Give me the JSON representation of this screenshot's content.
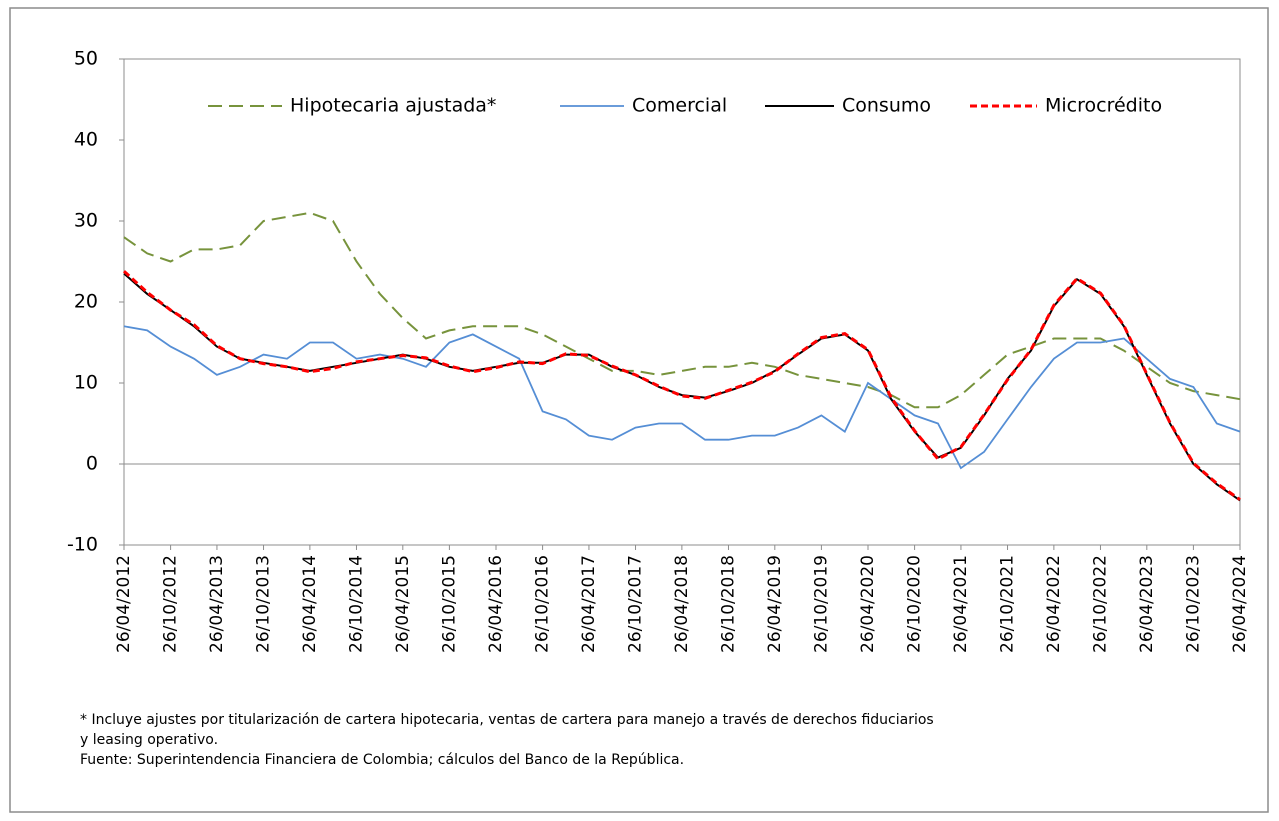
{
  "chart_data": {
    "type": "line",
    "x": [
      "26/04/2012",
      "26/07/2012",
      "26/10/2012",
      "26/01/2013",
      "26/04/2013",
      "26/07/2013",
      "26/10/2013",
      "26/01/2014",
      "26/04/2014",
      "26/07/2014",
      "26/10/2014",
      "26/01/2015",
      "26/04/2015",
      "26/07/2015",
      "26/10/2015",
      "26/01/2016",
      "26/04/2016",
      "26/07/2016",
      "26/10/2016",
      "26/01/2017",
      "26/04/2017",
      "26/07/2017",
      "26/10/2017",
      "26/01/2018",
      "26/04/2018",
      "26/07/2018",
      "26/10/2018",
      "26/01/2019",
      "26/04/2019",
      "26/07/2019",
      "26/10/2019",
      "26/01/2020",
      "26/04/2020",
      "26/07/2020",
      "26/10/2020",
      "26/01/2021",
      "26/04/2021",
      "26/07/2021",
      "26/10/2021",
      "26/01/2022",
      "26/04/2022",
      "26/07/2022",
      "26/10/2022",
      "26/01/2023",
      "26/04/2023",
      "26/07/2023",
      "26/10/2023",
      "26/01/2024",
      "26/04/2024"
    ],
    "xticks": [
      "26/04/2012",
      "26/10/2012",
      "26/04/2013",
      "26/10/2013",
      "26/04/2014",
      "26/10/2014",
      "26/04/2015",
      "26/10/2015",
      "26/04/2016",
      "26/10/2016",
      "26/04/2017",
      "26/10/2017",
      "26/04/2018",
      "26/10/2018",
      "26/04/2019",
      "26/10/2019",
      "26/04/2020",
      "26/10/2020",
      "26/04/2021",
      "26/10/2021",
      "26/04/2022",
      "26/10/2022",
      "26/04/2023",
      "26/10/2023",
      "26/04/2024"
    ],
    "ylim": [
      -10,
      50
    ],
    "yticks": [
      -10,
      0,
      10,
      20,
      30,
      40,
      50
    ],
    "legend": "top",
    "series": [
      {
        "name": "Hipotecaria ajustada*",
        "color": "#77933c",
        "dash": "dashed",
        "values": [
          28,
          26,
          25,
          26.5,
          26.5,
          27,
          30,
          30.5,
          31,
          30,
          25,
          21,
          18,
          15.5,
          16.5,
          17,
          17,
          17,
          16,
          14.5,
          13,
          11.5,
          11.5,
          11,
          11.5,
          12,
          12,
          12.5,
          12,
          11,
          10.5,
          10,
          9.5,
          8.5,
          7,
          7,
          8.5,
          11,
          13.5,
          14.5,
          15.5,
          15.5,
          15.5,
          14,
          12,
          10,
          9,
          8.5,
          8
        ]
      },
      {
        "name": "Comercial",
        "color": "#558ed5",
        "dash": "solid",
        "values": [
          17,
          16.5,
          14.5,
          13,
          11,
          12,
          13.5,
          13,
          15,
          15,
          13,
          13.5,
          13,
          12,
          15,
          16,
          14.5,
          13,
          6.5,
          5.5,
          3.5,
          3,
          4.5,
          5,
          5,
          3,
          3,
          3.5,
          3.5,
          4.5,
          6,
          4,
          10,
          8,
          6,
          5,
          -0.5,
          1.5,
          5.5,
          9.5,
          13,
          15,
          15,
          15.5,
          13,
          10.5,
          9.5,
          5,
          4
        ]
      },
      {
        "name": "Consumo",
        "color": "#000000",
        "dash": "solid",
        "values": [
          23.5,
          21,
          19,
          17,
          14.5,
          13,
          12.5,
          12,
          11.5,
          12,
          12.5,
          13,
          13.5,
          13,
          12,
          11.5,
          12,
          12.5,
          12.5,
          13.5,
          13.5,
          12,
          11,
          9.5,
          8.5,
          8.2,
          9,
          10,
          11.5,
          13.5,
          15.5,
          16,
          14,
          8,
          4,
          0.8,
          2,
          6,
          10.5,
          14,
          19.5,
          22.8,
          21,
          17,
          11,
          5,
          0,
          -2.5,
          -4.5
        ]
      },
      {
        "name": "Microcrédito",
        "color": "#ff0000",
        "dash": "dashed",
        "values": [
          23.8,
          21.2,
          19,
          17.2,
          14.6,
          13,
          12.4,
          12,
          11.4,
          11.8,
          12.6,
          13,
          13.4,
          13.1,
          12.1,
          11.4,
          11.9,
          12.6,
          12.4,
          13.6,
          13.4,
          12.1,
          11,
          9.6,
          8.4,
          8.1,
          9.1,
          10.1,
          11.4,
          13.6,
          15.6,
          16.1,
          14.1,
          8.2,
          4.1,
          0.6,
          2.1,
          6.1,
          10.4,
          14.1,
          19.6,
          22.9,
          21.1,
          17.1,
          11.1,
          5.1,
          0.1,
          -2.4,
          -4.4
        ]
      }
    ],
    "notes": [
      "* Incluye ajustes por titularización de cartera hipotecaria, ventas de cartera para manejo a través de derechos fiduciarios",
      "y leasing operativo.",
      "Fuente: Superintendencia Financiera de Colombia; cálculos del Banco de la República."
    ]
  }
}
